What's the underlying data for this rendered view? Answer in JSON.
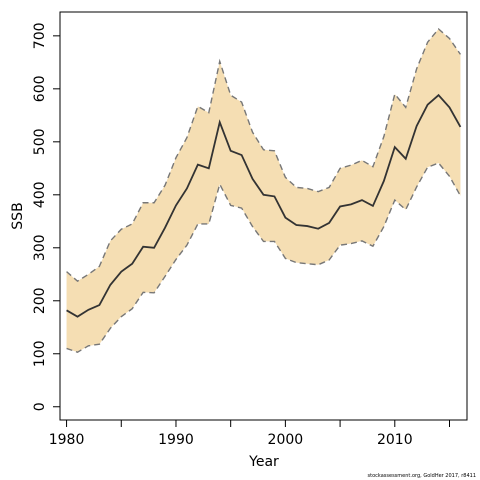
{
  "chart_data": {
    "type": "area",
    "xlabel": "Year",
    "ylabel": "SSB",
    "xlim": [
      1979.4,
      2016.6
    ],
    "ylim": [
      -25,
      745
    ],
    "x_ticks": [
      1980,
      1985,
      1990,
      1995,
      2000,
      2005,
      2010,
      2015
    ],
    "x_tick_labels": [
      "1980",
      "",
      "1990",
      "",
      "2000",
      "",
      "2010",
      ""
    ],
    "y_ticks": [
      0,
      100,
      200,
      300,
      400,
      500,
      600,
      700
    ],
    "y_tick_labels": [
      "0",
      "100",
      "200",
      "300",
      "400",
      "500",
      "600",
      "700"
    ],
    "grid": false,
    "legend": "none",
    "colors": {
      "band": "#F5DEB3",
      "median": "#333333",
      "bounds": "#777777"
    },
    "x": [
      1980,
      1981,
      1982,
      1983,
      1984,
      1985,
      1986,
      1987,
      1988,
      1989,
      1990,
      1991,
      1992,
      1993,
      1994,
      1995,
      1996,
      1997,
      1998,
      1999,
      2000,
      2001,
      2002,
      2003,
      2004,
      2005,
      2006,
      2007,
      2008,
      2009,
      2010,
      2011,
      2012,
      2013,
      2014,
      2015,
      2016
    ],
    "series": [
      {
        "role": "median",
        "values": [
          182,
          170,
          183,
          192,
          230,
          255,
          270,
          302,
          300,
          338,
          380,
          412,
          457,
          450,
          537,
          483,
          475,
          430,
          400,
          397,
          357,
          343,
          341,
          336,
          347,
          378,
          382,
          390,
          379,
          426,
          490,
          468,
          530,
          570,
          588,
          565,
          528
        ]
      },
      {
        "role": "upper",
        "values": [
          255,
          237,
          250,
          265,
          313,
          335,
          345,
          385,
          385,
          418,
          470,
          508,
          567,
          555,
          652,
          588,
          575,
          518,
          485,
          483,
          433,
          414,
          412,
          406,
          414,
          450,
          456,
          465,
          453,
          510,
          590,
          565,
          638,
          688,
          713,
          695,
          665
        ]
      },
      {
        "role": "lower",
        "values": [
          110,
          103,
          115,
          118,
          148,
          170,
          185,
          216,
          215,
          246,
          278,
          305,
          345,
          345,
          420,
          380,
          375,
          340,
          312,
          312,
          280,
          272,
          270,
          268,
          277,
          305,
          308,
          313,
          303,
          340,
          390,
          372,
          415,
          452,
          460,
          435,
          398
        ]
      }
    ]
  },
  "credit": "stockassessment.org, GoldHer 2017, r8411"
}
